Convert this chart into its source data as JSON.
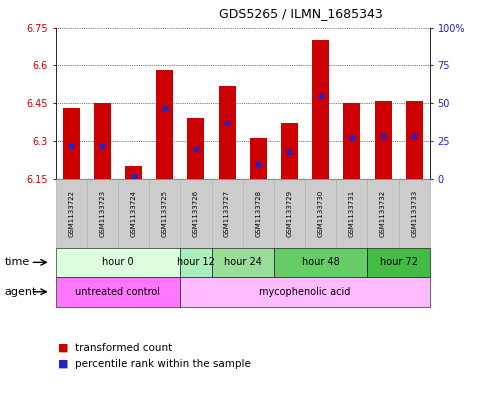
{
  "title": "GDS5265 / ILMN_1685343",
  "samples": [
    "GSM1133722",
    "GSM1133723",
    "GSM1133724",
    "GSM1133725",
    "GSM1133726",
    "GSM1133727",
    "GSM1133728",
    "GSM1133729",
    "GSM1133730",
    "GSM1133731",
    "GSM1133732",
    "GSM1133733"
  ],
  "transformed_counts": [
    6.43,
    6.45,
    6.2,
    6.58,
    6.39,
    6.52,
    6.31,
    6.37,
    6.7,
    6.45,
    6.46,
    6.46
  ],
  "percentile_ranks": [
    22,
    22,
    2,
    47,
    20,
    37,
    10,
    18,
    55,
    27,
    28,
    28
  ],
  "ymin": 6.15,
  "ymax": 6.75,
  "yticks": [
    6.15,
    6.3,
    6.45,
    6.6,
    6.75
  ],
  "right_yticks": [
    0,
    25,
    50,
    75,
    100
  ],
  "right_ytick_labels": [
    "0",
    "25",
    "50",
    "75",
    "100%"
  ],
  "bar_color": "#cc0000",
  "percentile_color": "#2222cc",
  "background_color": "#ffffff",
  "plot_bg_color": "#ffffff",
  "time_groups": [
    {
      "label": "hour 0",
      "start": 0,
      "end": 3,
      "color": "#ddffdd"
    },
    {
      "label": "hour 12",
      "start": 4,
      "end": 4,
      "color": "#aaeebb"
    },
    {
      "label": "hour 24",
      "start": 5,
      "end": 6,
      "color": "#99dd99"
    },
    {
      "label": "hour 48",
      "start": 7,
      "end": 9,
      "color": "#66cc66"
    },
    {
      "label": "hour 72",
      "start": 10,
      "end": 11,
      "color": "#44bb44"
    }
  ],
  "agent_groups": [
    {
      "label": "untreated control",
      "start": 0,
      "end": 3,
      "color": "#ff77ff"
    },
    {
      "label": "mycophenolic acid",
      "start": 4,
      "end": 11,
      "color": "#ffbbff"
    }
  ],
  "bar_color_red": "#cc0000",
  "percentile_color_blue": "#2222cc",
  "xlabel_color_left": "#cc0000",
  "xlabel_color_right": "#2222cc",
  "tick_fontsize": 7,
  "sample_box_color": "#cccccc"
}
